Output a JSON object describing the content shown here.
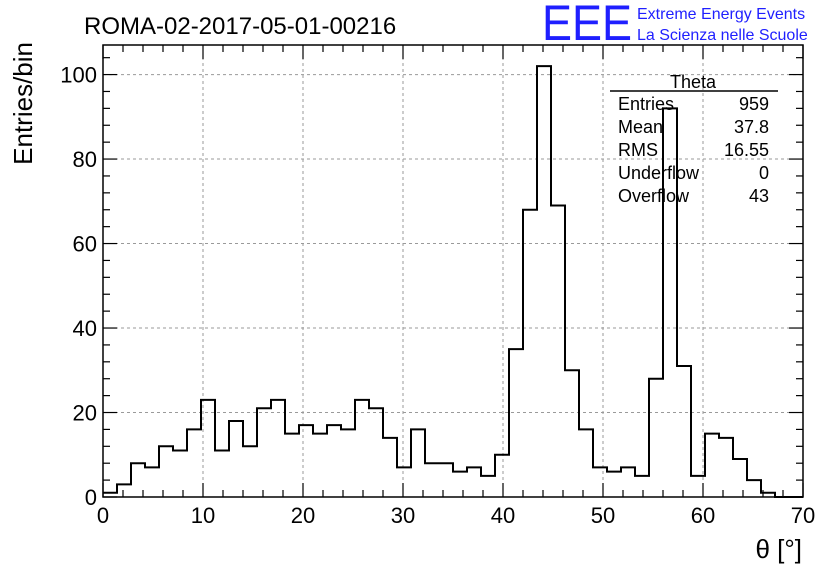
{
  "chart_data": {
    "type": "histogram",
    "title": "ROMA-02-2017-05-01-00216",
    "xlabel": "θ [°]",
    "ylabel": "Entries/bin",
    "xlim": [
      0,
      70
    ],
    "ylim": [
      0,
      107
    ],
    "grid": true,
    "bin_width": 1.4,
    "x_ticks": [
      0,
      10,
      20,
      30,
      40,
      50,
      60,
      70
    ],
    "y_ticks": [
      0,
      20,
      40,
      60,
      80,
      100
    ],
    "values": [
      1,
      3,
      8,
      7,
      12,
      11,
      16,
      23,
      11,
      18,
      12,
      21,
      23,
      15,
      17,
      15,
      17,
      16,
      23,
      21,
      14,
      7,
      16,
      8,
      8,
      6,
      7,
      5,
      10,
      35,
      68,
      102,
      69,
      30,
      16,
      7,
      6,
      7,
      5,
      28,
      92,
      31,
      5,
      15,
      14,
      9,
      4,
      1,
      0,
      0
    ],
    "stats": {
      "name": "Theta",
      "rows": [
        {
          "label": "Entries",
          "value": "959"
        },
        {
          "label": "Mean",
          "value": "37.8"
        },
        {
          "label": "RMS",
          "value": "16.55"
        },
        {
          "label": "Underflow",
          "value": "0"
        },
        {
          "label": "Overflow",
          "value": "43"
        }
      ]
    }
  },
  "logo": {
    "mark": "EEE",
    "line1": "Extreme Energy Events",
    "line2": "La Scienza nelle Scuole"
  },
  "colors": {
    "logo": "#1f1fff",
    "line": "#000000",
    "grid": "#9a9a9a"
  }
}
